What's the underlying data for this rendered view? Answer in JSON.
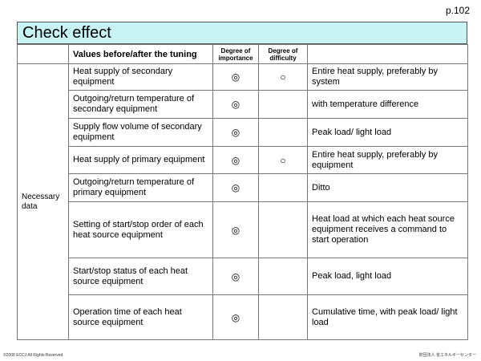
{
  "page_number": "p.102",
  "title": "Check effect",
  "headers": {
    "values": "Values before/after the tuning",
    "importance": "Degree of importance",
    "difficulty": "Degree of difficulty",
    "notes": ""
  },
  "category": "Necessary data",
  "rows": [
    {
      "item": "Heat supply of secondary equipment",
      "importance": "◎",
      "difficulty": "○",
      "note": "Entire heat supply, preferably by system"
    },
    {
      "item": "Outgoing/return temperature of secondary equipment",
      "importance": "◎",
      "difficulty": "",
      "note": "with temperature difference"
    },
    {
      "item": "Supply flow volume of secondary equipment",
      "importance": "◎",
      "difficulty": "",
      "note": "Peak load/ light load"
    },
    {
      "item": "Heat supply of primary equipment",
      "importance": "◎",
      "difficulty": "○",
      "note": "Entire heat supply, preferably by equipment"
    },
    {
      "item": "Outgoing/return temperature of primary equipment",
      "importance": "◎",
      "difficulty": "",
      "note": "Ditto"
    },
    {
      "item": "Setting of start/stop order of each heat source equipment",
      "importance": "◎",
      "difficulty": "",
      "note": "Heat load at which each heat source equipment receives a command to start operation"
    },
    {
      "item": "Start/stop status of each heat source equipment",
      "importance": "◎",
      "difficulty": "",
      "note": "Peak load, light load"
    },
    {
      "item": "Operation time of each heat source equipment",
      "importance": "◎",
      "difficulty": "",
      "note": "Cumulative time, with peak load/ light load"
    }
  ],
  "footer_left": "©2008 ECCJ All Rights Reserved",
  "footer_right": "財団法人 省エネルギーセンター"
}
